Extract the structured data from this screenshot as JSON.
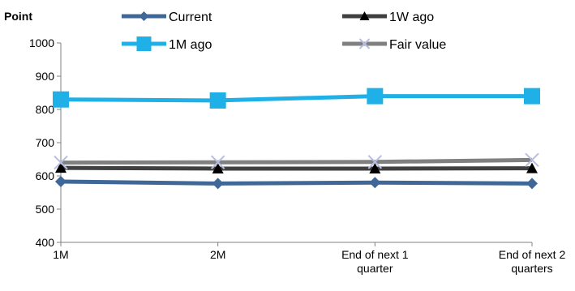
{
  "chart_data": {
    "type": "line",
    "ylabel": "Point",
    "categories": [
      "1M",
      "2M",
      "End of next 1 quarter",
      "End of next 2 quarters"
    ],
    "ylim": [
      400,
      1000
    ],
    "yticks": [
      400,
      500,
      600,
      700,
      800,
      900,
      1000
    ],
    "grid": false,
    "legend_position": "top",
    "series": [
      {
        "name": "Current",
        "values": [
          583,
          577,
          580,
          577
        ],
        "color": "#3F6797",
        "marker": "diamond"
      },
      {
        "name": "1W ago",
        "values": [
          624,
          622,
          622,
          623
        ],
        "color": "#404040",
        "marker": "triangle"
      },
      {
        "name": "1M ago",
        "values": [
          830,
          827,
          840,
          840
        ],
        "color": "#1EB0E6",
        "marker": "square"
      },
      {
        "name": "Fair value",
        "values": [
          640,
          641,
          642,
          648
        ],
        "color": "#808080",
        "marker": "x"
      }
    ]
  }
}
